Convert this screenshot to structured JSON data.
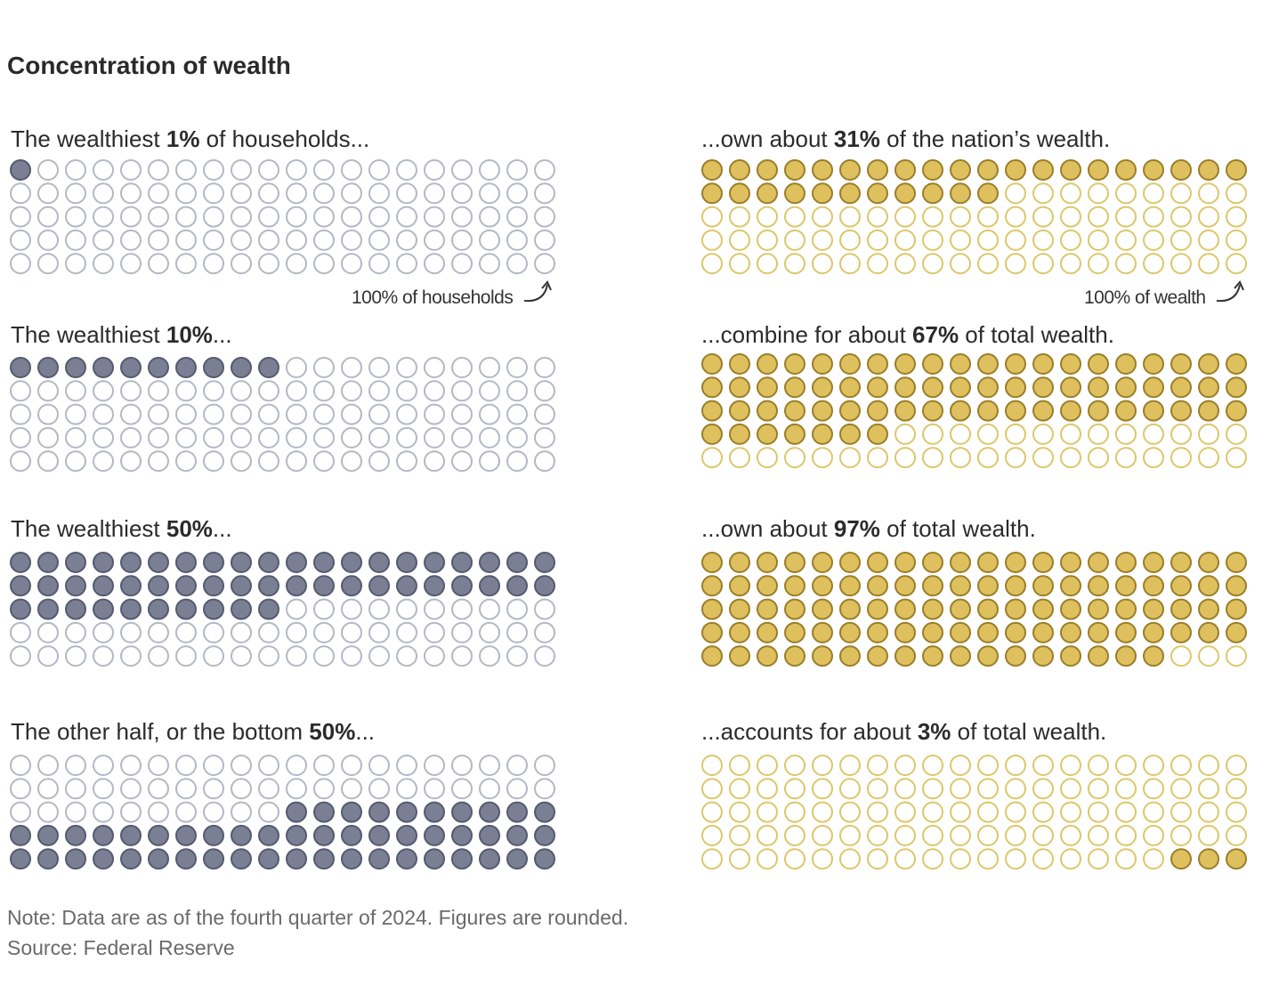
{
  "title": "Concentration of wealth",
  "panels": [
    {
      "households": {
        "pre": "The wealthiest ",
        "bold": "1%",
        "post": " of households...",
        "filled": 1,
        "order": "top"
      },
      "wealth": {
        "pre": "...own about ",
        "bold": "31%",
        "post": " of the nation’s wealth.",
        "filled": 31,
        "order": "top"
      },
      "households_annotation": "100% of households",
      "wealth_annotation": "100% of wealth"
    },
    {
      "households": {
        "pre": "The wealthiest ",
        "bold": "10%",
        "post": "...",
        "filled": 10,
        "order": "top"
      },
      "wealth": {
        "pre": "...combine for about ",
        "bold": "67%",
        "post": " of total wealth.",
        "filled": 67,
        "order": "top"
      }
    },
    {
      "households": {
        "pre": "The wealthiest ",
        "bold": "50%",
        "post": "...",
        "filled": 50,
        "order": "top"
      },
      "wealth": {
        "pre": "...own about ",
        "bold": "97%",
        "post": " of total wealth.",
        "filled": 97,
        "order": "top"
      }
    },
    {
      "households": {
        "pre": "The other half, or the bottom ",
        "bold": "50%",
        "post": "...",
        "filled": 50,
        "order": "bottom"
      },
      "wealth": {
        "pre": "...accounts for about ",
        "bold": "3%",
        "post": " of total wealth.",
        "filled": 3,
        "order": "bottom"
      }
    }
  ],
  "chart_data": {
    "type": "waffle",
    "units_per_grid": 100,
    "grid": {
      "columns": 20,
      "rows": 5
    },
    "series": [
      {
        "name": "households",
        "values": [
          1,
          10,
          50,
          50
        ]
      },
      {
        "name": "wealth",
        "values": [
          31,
          67,
          97,
          3
        ]
      }
    ]
  },
  "colors": {
    "household_fill": "#7b7f93",
    "household_stroke": "#555a70",
    "household_empty": "#b3b8c6",
    "wealth_fill": "#dfc05e",
    "wealth_stroke": "#9a7e28",
    "wealth_empty": "#dcc76a"
  },
  "note": "Note: Data are as of the fourth quarter of 2024. Figures are rounded.",
  "source": "Source: Federal Reserve"
}
